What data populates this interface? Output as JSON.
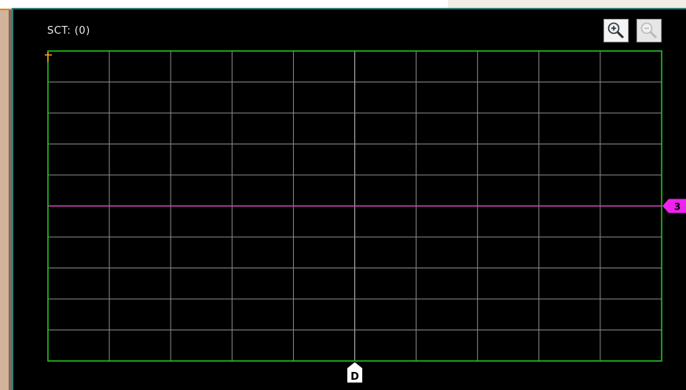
{
  "window": {
    "status_label": "SCT: (0)",
    "zoom_in_icon": "zoom-in-icon",
    "zoom_out_icon": "zoom-out-icon"
  },
  "markers": {
    "trigger_marker": "D",
    "channel_marker": "3",
    "trigger_level_icon": "trigger-level-icon"
  },
  "colors": {
    "grid": "#8a8a8a",
    "border": "#22cc22",
    "trace_green": "#22dd22",
    "trace_yellow": "#e8e800",
    "trace_magenta": "#dd22dd",
    "marker_magenta": "#ee22ee",
    "trigger_orange": "#ff9900"
  },
  "chart_data": {
    "type": "line",
    "grid": true,
    "x_divisions": 10,
    "y_divisions": 10,
    "xlim": [
      0,
      10
    ],
    "ylim": [
      -5,
      5
    ],
    "series": [
      {
        "color": "#22dd22",
        "x": [
          0,
          5.5,
          5.9,
          6.1,
          10
        ],
        "y": [
          0,
          0,
          0,
          0,
          0
        ]
      },
      {
        "color": "#e8e800",
        "x": [
          0,
          5.5,
          5.9,
          6.1,
          10
        ],
        "y": [
          0,
          0,
          0,
          0,
          0
        ]
      },
      {
        "color": "#dd22dd",
        "x": [
          0,
          5.5,
          5.9,
          6.1,
          10
        ],
        "y": [
          0,
          0,
          0,
          0,
          0
        ]
      }
    ]
  }
}
